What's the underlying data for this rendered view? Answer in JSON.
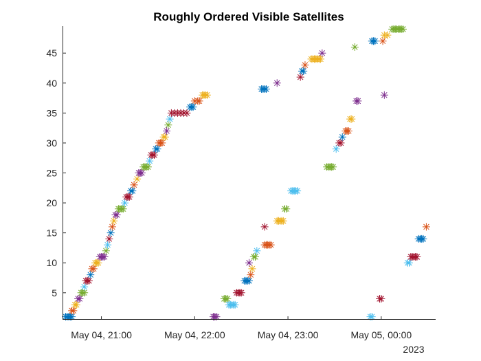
{
  "chart_data": {
    "type": "scatter",
    "title": "Roughly Ordered Visible Satellites",
    "xlabel": "",
    "ylabel": "",
    "marker": "*",
    "x_axis": {
      "type": "datetime",
      "range": [
        "2023-05-04 20:35",
        "2023-05-05 00:35"
      ],
      "ticks": [
        {
          "value": "2023-05-04 21:00",
          "label": "May 04, 21:00"
        },
        {
          "value": "2023-05-04 22:00",
          "label": "May 04, 22:00"
        },
        {
          "value": "2023-05-04 23:00",
          "label": "May 04, 23:00"
        },
        {
          "value": "2023-05-05 00:00",
          "label": "May 05, 00:00"
        }
      ],
      "secondary_label": "2023"
    },
    "y_axis": {
      "range": [
        0.5,
        49.5
      ],
      "ticks": [
        5,
        10,
        15,
        20,
        25,
        30,
        35,
        40,
        45
      ]
    },
    "grid": false,
    "legend": "none",
    "colors": [
      "#0072BD",
      "#D95319",
      "#EDB120",
      "#7E2F8E",
      "#77AC30",
      "#4DBEEE",
      "#A2142F"
    ],
    "series": [
      {
        "x": [
          "2023-05-04 20:37",
          "2023-05-04 20:38",
          "2023-05-04 20:39",
          "2023-05-04 20:40",
          "2023-05-04 20:41"
        ],
        "values": [
          1,
          1,
          1,
          1,
          1
        ]
      },
      {
        "x": [
          "2023-05-04 20:41",
          "2023-05-04 20:42"
        ],
        "values": [
          2,
          2
        ]
      },
      {
        "x": [
          "2023-05-04 20:43",
          "2023-05-04 20:44"
        ],
        "values": [
          3,
          3
        ]
      },
      {
        "x": [
          "2023-05-04 20:45",
          "2023-05-04 20:46"
        ],
        "values": [
          4,
          4
        ]
      },
      {
        "x": [
          "2023-05-04 20:47",
          "2023-05-04 20:48",
          "2023-05-04 20:49"
        ],
        "values": [
          5,
          5,
          5
        ]
      },
      {
        "x": [
          "2023-05-04 20:49"
        ],
        "values": [
          6
        ]
      },
      {
        "x": [
          "2023-05-04 20:50",
          "2023-05-04 20:51",
          "2023-05-04 20:52"
        ],
        "values": [
          7,
          7,
          7
        ]
      },
      {
        "x": [
          "2023-05-04 20:53"
        ],
        "values": [
          8
        ]
      },
      {
        "x": [
          "2023-05-04 20:54",
          "2023-05-04 20:55"
        ],
        "values": [
          9,
          9
        ]
      },
      {
        "x": [
          "2023-05-04 20:56",
          "2023-05-04 20:57",
          "2023-05-04 20:58"
        ],
        "values": [
          10,
          10,
          10
        ]
      },
      {
        "x": [
          "2023-05-04 20:59",
          "2023-05-04 21:00",
          "2023-05-04 21:01",
          "2023-05-04 21:02"
        ],
        "values": [
          11,
          11,
          11,
          11
        ]
      },
      {
        "x": [
          "2023-05-04 21:03"
        ],
        "values": [
          12
        ]
      },
      {
        "x": [
          "2023-05-04 21:04"
        ],
        "values": [
          13
        ]
      },
      {
        "x": [
          "2023-05-04 21:05"
        ],
        "values": [
          14
        ]
      },
      {
        "x": [
          "2023-05-04 21:06"
        ],
        "values": [
          15
        ]
      },
      {
        "x": [
          "2023-05-04 21:07"
        ],
        "values": [
          16
        ]
      },
      {
        "x": [
          "2023-05-04 21:08"
        ],
        "values": [
          17
        ]
      },
      {
        "x": [
          "2023-05-04 21:09",
          "2023-05-04 21:10"
        ],
        "values": [
          18,
          18
        ]
      },
      {
        "x": [
          "2023-05-04 21:11",
          "2023-05-04 21:12",
          "2023-05-04 21:13",
          "2023-05-04 21:14"
        ],
        "values": [
          19,
          19,
          19,
          19
        ]
      },
      {
        "x": [
          "2023-05-04 21:15"
        ],
        "values": [
          20
        ]
      },
      {
        "x": [
          "2023-05-04 21:16",
          "2023-05-04 21:17",
          "2023-05-04 21:18"
        ],
        "values": [
          21,
          21,
          21
        ]
      },
      {
        "x": [
          "2023-05-04 21:19",
          "2023-05-04 21:20"
        ],
        "values": [
          22,
          22
        ]
      },
      {
        "x": [
          "2023-05-04 21:21"
        ],
        "values": [
          23
        ]
      },
      {
        "x": [
          "2023-05-04 21:23"
        ],
        "values": [
          24
        ]
      },
      {
        "x": [
          "2023-05-04 21:24",
          "2023-05-04 21:25",
          "2023-05-04 21:26"
        ],
        "values": [
          25,
          25,
          25
        ]
      },
      {
        "x": [
          "2023-05-04 21:27",
          "2023-05-04 21:28",
          "2023-05-04 21:29",
          "2023-05-04 21:30"
        ],
        "values": [
          26,
          26,
          26,
          26
        ]
      },
      {
        "x": [
          "2023-05-04 21:31"
        ],
        "values": [
          27
        ]
      },
      {
        "x": [
          "2023-05-04 21:32",
          "2023-05-04 21:33",
          "2023-05-04 21:34"
        ],
        "values": [
          28,
          28,
          28
        ]
      },
      {
        "x": [
          "2023-05-04 21:35",
          "2023-05-04 21:36"
        ],
        "values": [
          29,
          29
        ]
      },
      {
        "x": [
          "2023-05-04 21:37",
          "2023-05-04 21:38",
          "2023-05-04 21:39"
        ],
        "values": [
          30,
          30,
          30
        ]
      },
      {
        "x": [
          "2023-05-04 21:40",
          "2023-05-04 21:41"
        ],
        "values": [
          31,
          31
        ]
      },
      {
        "x": [
          "2023-05-04 21:42"
        ],
        "values": [
          32
        ]
      },
      {
        "x": [
          "2023-05-04 21:43"
        ],
        "values": [
          33
        ]
      },
      {
        "x": [
          "2023-05-04 21:44"
        ],
        "values": [
          34
        ]
      },
      {
        "x": [
          "2023-05-04 21:45",
          "2023-05-04 21:47",
          "2023-05-04 21:49",
          "2023-05-04 21:51",
          "2023-05-04 21:53",
          "2023-05-04 21:55"
        ],
        "values": [
          35,
          35,
          35,
          35,
          35,
          35
        ]
      },
      {
        "x": [
          "2023-05-04 21:57",
          "2023-05-04 21:58",
          "2023-05-04 21:59"
        ],
        "values": [
          36,
          36,
          36
        ]
      },
      {
        "x": [
          "2023-05-04 22:00",
          "2023-05-04 22:02",
          "2023-05-04 22:03"
        ],
        "values": [
          37,
          37,
          37
        ]
      },
      {
        "x": [
          "2023-05-04 22:05",
          "2023-05-04 22:06",
          "2023-05-04 22:07",
          "2023-05-04 22:08"
        ],
        "values": [
          38,
          38,
          38,
          38
        ]
      },
      {
        "x": [
          "2023-05-04 22:12",
          "2023-05-04 22:13",
          "2023-05-04 22:14"
        ],
        "values": [
          1,
          1,
          1
        ]
      },
      {
        "x": [
          "2023-05-04 22:19",
          "2023-05-04 22:20",
          "2023-05-04 22:21"
        ],
        "values": [
          4,
          4,
          4
        ]
      },
      {
        "x": [
          "2023-05-04 22:22",
          "2023-05-04 22:23",
          "2023-05-04 22:24",
          "2023-05-04 22:25",
          "2023-05-04 22:26"
        ],
        "values": [
          3,
          3,
          3,
          3,
          3
        ]
      },
      {
        "x": [
          "2023-05-04 22:27",
          "2023-05-04 22:28",
          "2023-05-04 22:29",
          "2023-05-04 22:30"
        ],
        "values": [
          5,
          5,
          5,
          5
        ]
      },
      {
        "x": [
          "2023-05-04 22:32",
          "2023-05-04 22:33",
          "2023-05-04 22:34",
          "2023-05-04 22:35"
        ],
        "values": [
          7,
          7,
          7,
          7
        ]
      },
      {
        "x": [
          "2023-05-04 22:36"
        ],
        "values": [
          8
        ]
      },
      {
        "x": [
          "2023-05-04 22:37"
        ],
        "values": [
          9
        ]
      },
      {
        "x": [
          "2023-05-04 22:35"
        ],
        "values": [
          10
        ]
      },
      {
        "x": [
          "2023-05-04 22:38",
          "2023-05-04 22:39"
        ],
        "values": [
          11,
          11
        ]
      },
      {
        "x": [
          "2023-05-04 22:40"
        ],
        "values": [
          12
        ]
      },
      {
        "x": [
          "2023-05-04 22:45"
        ],
        "values": [
          16
        ]
      },
      {
        "x": [
          "2023-05-04 22:43",
          "2023-05-04 22:44",
          "2023-05-04 22:45",
          "2023-05-04 22:46"
        ],
        "values": [
          39,
          39,
          39,
          39
        ]
      },
      {
        "x": [
          "2023-05-04 22:45",
          "2023-05-04 22:46",
          "2023-05-04 22:47",
          "2023-05-04 22:48",
          "2023-05-04 22:49"
        ],
        "values": [
          13,
          13,
          13,
          13,
          13
        ]
      },
      {
        "x": [
          "2023-05-04 22:53",
          "2023-05-04 22:54",
          "2023-05-04 22:55",
          "2023-05-04 22:56",
          "2023-05-04 22:57"
        ],
        "values": [
          17,
          17,
          17,
          17,
          17
        ]
      },
      {
        "x": [
          "2023-05-04 22:53"
        ],
        "values": [
          40
        ]
      },
      {
        "x": [
          "2023-05-04 22:58",
          "2023-05-04 22:59"
        ],
        "values": [
          19,
          19
        ]
      },
      {
        "x": [
          "2023-05-04 23:02",
          "2023-05-04 23:03",
          "2023-05-04 23:04",
          "2023-05-04 23:05",
          "2023-05-04 23:06"
        ],
        "values": [
          22,
          22,
          22,
          22,
          22
        ]
      },
      {
        "x": [
          "2023-05-04 23:08"
        ],
        "values": [
          41
        ]
      },
      {
        "x": [
          "2023-05-04 23:09",
          "2023-05-04 23:10"
        ],
        "values": [
          42,
          42
        ]
      },
      {
        "x": [
          "2023-05-04 23:11"
        ],
        "values": [
          43
        ]
      },
      {
        "x": [
          "2023-05-04 23:15",
          "2023-05-04 23:16",
          "2023-05-04 23:17",
          "2023-05-04 23:18",
          "2023-05-04 23:19",
          "2023-05-04 23:20",
          "2023-05-04 23:21"
        ],
        "values": [
          44,
          44,
          44,
          44,
          44,
          44,
          44
        ]
      },
      {
        "x": [
          "2023-05-04 23:22"
        ],
        "values": [
          45
        ]
      },
      {
        "x": [
          "2023-05-04 23:25",
          "2023-05-04 23:26",
          "2023-05-04 23:27",
          "2023-05-04 23:28",
          "2023-05-04 23:29"
        ],
        "values": [
          26,
          26,
          26,
          26,
          26
        ]
      },
      {
        "x": [
          "2023-05-04 23:31"
        ],
        "values": [
          29
        ]
      },
      {
        "x": [
          "2023-05-04 23:33",
          "2023-05-04 23:34"
        ],
        "values": [
          30,
          30
        ]
      },
      {
        "x": [
          "2023-05-04 23:35"
        ],
        "values": [
          31
        ]
      },
      {
        "x": [
          "2023-05-04 23:37",
          "2023-05-04 23:38",
          "2023-05-04 23:39"
        ],
        "values": [
          32,
          32,
          32
        ]
      },
      {
        "x": [
          "2023-05-04 23:40",
          "2023-05-04 23:41"
        ],
        "values": [
          34,
          34
        ]
      },
      {
        "x": [
          "2023-05-04 23:44",
          "2023-05-04 23:45"
        ],
        "values": [
          37,
          37
        ]
      },
      {
        "x": [
          "2023-05-04 23:43"
        ],
        "values": [
          46
        ]
      },
      {
        "x": [
          "2023-05-04 23:53",
          "2023-05-04 23:54"
        ],
        "values": [
          1,
          1
        ]
      },
      {
        "x": [
          "2023-05-04 23:59",
          "2023-05-05 00:00"
        ],
        "values": [
          4,
          4
        ]
      },
      {
        "x": [
          "2023-05-04 23:54",
          "2023-05-04 23:55",
          "2023-05-04 23:56"
        ],
        "values": [
          47,
          47,
          47
        ]
      },
      {
        "x": [
          "2023-05-05 00:01"
        ],
        "values": [
          47
        ]
      },
      {
        "x": [
          "2023-05-05 00:02",
          "2023-05-05 00:04"
        ],
        "values": [
          48,
          48
        ]
      },
      {
        "x": [
          "2023-05-05 00:02"
        ],
        "values": [
          38
        ]
      },
      {
        "x": [
          "2023-05-05 00:07",
          "2023-05-05 00:08",
          "2023-05-05 00:09",
          "2023-05-05 00:10",
          "2023-05-05 00:11",
          "2023-05-05 00:12",
          "2023-05-05 00:13",
          "2023-05-05 00:14"
        ],
        "values": [
          49,
          49,
          49,
          49,
          49,
          49,
          49,
          49
        ]
      },
      {
        "x": [
          "2023-05-05 00:17",
          "2023-05-05 00:18"
        ],
        "values": [
          10,
          10
        ]
      },
      {
        "x": [
          "2023-05-05 00:19",
          "2023-05-05 00:20",
          "2023-05-05 00:21",
          "2023-05-05 00:22",
          "2023-05-05 00:23"
        ],
        "values": [
          11,
          11,
          11,
          11,
          11
        ]
      },
      {
        "x": [
          "2023-05-05 00:24",
          "2023-05-05 00:25",
          "2023-05-05 00:26",
          "2023-05-05 00:27"
        ],
        "values": [
          14,
          14,
          14,
          14
        ]
      },
      {
        "x": [
          "2023-05-05 00:29"
        ],
        "values": [
          16
        ]
      }
    ]
  }
}
